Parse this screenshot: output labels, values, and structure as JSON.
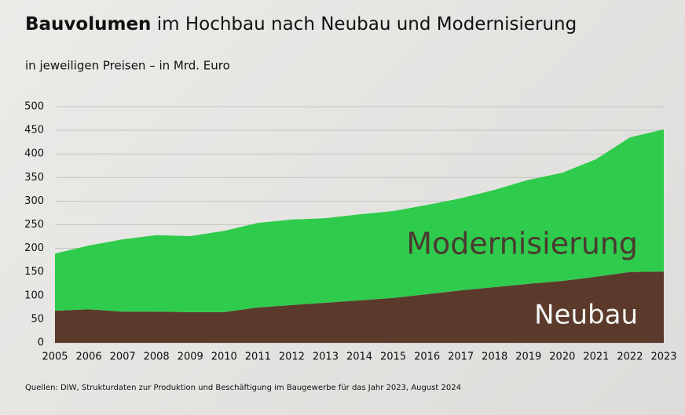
{
  "chart_data": {
    "type": "stacked-area",
    "title_lead": "Bauvolumen",
    "title": "im Hochbau nach Neubau und Modernisierung",
    "subtitle": "in jeweiligen Preisen – in Mrd. Euro",
    "source": "Quellen: DIW, Strukturdaten zur Produktion und Beschäftigung im Baugewerbe für das Jahr 2023, August 2024",
    "x": [
      2005,
      2006,
      2007,
      2008,
      2009,
      2010,
      2011,
      2012,
      2013,
      2014,
      2015,
      2016,
      2017,
      2018,
      2019,
      2020,
      2021,
      2022,
      2023
    ],
    "xlim": [
      2005,
      2023
    ],
    "xticks": [
      2005,
      2006,
      2007,
      2008,
      2009,
      2010,
      2011,
      2012,
      2013,
      2014,
      2015,
      2016,
      2017,
      2018,
      2019,
      2020,
      2021,
      2022,
      2023
    ],
    "ylim": [
      0,
      500
    ],
    "yticks": [
      0,
      50,
      100,
      150,
      200,
      250,
      300,
      350,
      400,
      450,
      500
    ],
    "grid": true,
    "series": [
      {
        "name": "Neubau",
        "color": "#5b3a2c",
        "values": [
          68,
          71,
          66,
          66,
          65,
          65,
          75,
          80,
          85,
          90,
          95,
          103,
          111,
          118,
          125,
          131,
          140,
          150,
          151
        ]
      },
      {
        "name": "Modernisierung",
        "color": "#2fcb4c",
        "values": [
          121,
          135,
          153,
          162,
          161,
          172,
          179,
          181,
          179,
          182,
          184,
          189,
          195,
          206,
          220,
          229,
          249,
          285,
          301
        ]
      }
    ]
  }
}
